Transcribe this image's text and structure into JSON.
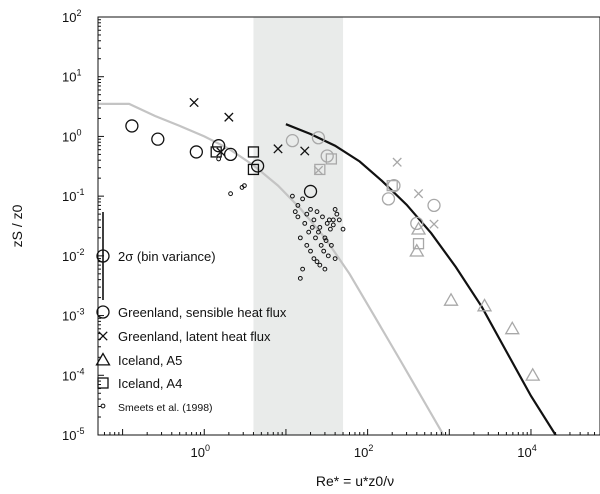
{
  "chart_data": {
    "type": "scatter",
    "title": "",
    "xlabel": "Re* = u*z0/ν",
    "ylabel": "zS / z0",
    "x_scale": "log",
    "y_scale": "log",
    "xlim": [
      0.05,
      70000
    ],
    "ylim": [
      1e-05,
      100
    ],
    "x_ticks": [
      {
        "value": 1,
        "base": "10",
        "exp": "0"
      },
      {
        "value": 100,
        "base": "10",
        "exp": "2"
      },
      {
        "value": 10000,
        "base": "10",
        "exp": "4"
      }
    ],
    "y_ticks": [
      {
        "value": 100,
        "base": "10",
        "exp": "2"
      },
      {
        "value": 10,
        "base": "10",
        "exp": "1"
      },
      {
        "value": 1,
        "base": "10",
        "exp": "0"
      },
      {
        "value": 0.1,
        "base": "10",
        "exp": "-1"
      },
      {
        "value": 0.01,
        "base": "10",
        "exp": "-2"
      },
      {
        "value": 0.001,
        "base": "10",
        "exp": "-3"
      },
      {
        "value": 0.0001,
        "base": "10",
        "exp": "-4"
      },
      {
        "value": 1e-05,
        "base": "10",
        "exp": "-5"
      }
    ],
    "grid": false,
    "shaded_band": {
      "x": [
        4,
        50
      ],
      "color": "#e9ebea"
    },
    "legend": {
      "placement": "lower-left",
      "errorbar_label": "2σ (bin variance)",
      "entries": [
        {
          "marker": "circle",
          "label": "Greenland, sensible heat flux"
        },
        {
          "marker": "cross",
          "label": "Greenland, latent heat flux"
        },
        {
          "marker": "triangle",
          "label": "Iceland, A5"
        },
        {
          "marker": "square",
          "label": "Iceland, A4"
        },
        {
          "marker": "small-circle",
          "label": "Smeets et al. (1998)"
        }
      ]
    },
    "colors": {
      "black": "#111111",
      "gray": "#a8a8a8",
      "light_curve": "#c4c4c4"
    },
    "curves": [
      {
        "name": "",
        "color": "light",
        "points": [
          [
            0.05,
            3.5
          ],
          [
            0.12,
            3.5
          ],
          [
            0.25,
            2.2
          ],
          [
            0.5,
            1.5
          ],
          [
            1,
            1.0
          ],
          [
            2,
            0.62
          ],
          [
            4,
            0.33
          ],
          [
            8,
            0.15
          ],
          [
            15,
            0.062
          ],
          [
            30,
            0.02
          ],
          [
            60,
            0.005
          ],
          [
            120,
            0.001
          ],
          [
            250,
            0.00018
          ],
          [
            500,
            3.5e-05
          ],
          [
            850,
            1e-05
          ]
        ]
      },
      {
        "name": "",
        "color": "black",
        "points": [
          [
            10,
            1.6
          ],
          [
            20,
            1.1
          ],
          [
            40,
            0.7
          ],
          [
            80,
            0.38
          ],
          [
            150,
            0.18
          ],
          [
            300,
            0.072
          ],
          [
            600,
            0.024
          ],
          [
            1200,
            0.0065
          ],
          [
            2500,
            0.0014
          ],
          [
            5000,
            0.00025
          ],
          [
            10000,
            4.5e-05
          ],
          [
            20000,
            1e-05
          ]
        ]
      }
    ],
    "series": [
      {
        "name": "Greenland, sensible heat flux",
        "marker": "circle",
        "color": "black",
        "size": "large",
        "points": [
          [
            0.13,
            1.5
          ],
          [
            0.27,
            0.9
          ],
          [
            0.8,
            0.55
          ],
          [
            1.5,
            0.7
          ],
          [
            2.1,
            0.5
          ],
          [
            4.5,
            0.32
          ],
          [
            20,
            0.12
          ]
        ]
      },
      {
        "name": "Greenland, sensible heat flux",
        "marker": "circle",
        "color": "gray",
        "size": "large",
        "points": [
          [
            12,
            0.85
          ],
          [
            25,
            0.95
          ],
          [
            32,
            0.47
          ],
          [
            180,
            0.09
          ],
          [
            210,
            0.15
          ],
          [
            400,
            0.035
          ],
          [
            650,
            0.07
          ]
        ]
      },
      {
        "name": "Greenland, latent heat flux",
        "marker": "cross",
        "color": "black",
        "points": [
          [
            0.75,
            3.7
          ],
          [
            2,
            2.1
          ],
          [
            1.6,
            0.55
          ],
          [
            8,
            0.62
          ],
          [
            17,
            0.57
          ]
        ]
      },
      {
        "name": "Greenland, latent heat flux",
        "marker": "cross",
        "color": "gray",
        "points": [
          [
            25,
            0.27
          ],
          [
            230,
            0.37
          ],
          [
            420,
            0.11
          ],
          [
            650,
            0.034
          ]
        ]
      },
      {
        "name": "Iceland, A5",
        "marker": "triangle",
        "color": "gray",
        "points": [
          [
            400,
            0.012
          ],
          [
            420,
            0.028
          ],
          [
            1050,
            0.0018
          ],
          [
            2700,
            0.00145
          ],
          [
            5900,
            0.0006
          ],
          [
            10500,
            0.0001
          ]
        ]
      },
      {
        "name": "Iceland, A4",
        "marker": "square",
        "color": "black",
        "points": [
          [
            1.4,
            0.55
          ],
          [
            4,
            0.55
          ],
          [
            4,
            0.28
          ]
        ]
      },
      {
        "name": "Iceland, A4",
        "marker": "square",
        "color": "gray",
        "points": [
          [
            26,
            0.28
          ],
          [
            36,
            0.42
          ],
          [
            200,
            0.15
          ],
          [
            420,
            0.016
          ]
        ]
      },
      {
        "name": "Smeets et al. (1998)",
        "marker": "small-circle",
        "color": "black",
        "points": [
          [
            1.5,
            0.42
          ],
          [
            2.1,
            0.11
          ],
          [
            2.9,
            0.14
          ],
          [
            3.1,
            0.15
          ],
          [
            12,
            0.1
          ],
          [
            14,
            0.07
          ],
          [
            16,
            0.09
          ],
          [
            18,
            0.05
          ],
          [
            20,
            0.06
          ],
          [
            22,
            0.04
          ],
          [
            24,
            0.055
          ],
          [
            26,
            0.03
          ],
          [
            28,
            0.045
          ],
          [
            30,
            0.02
          ],
          [
            32,
            0.035
          ],
          [
            35,
            0.028
          ],
          [
            38,
            0.04
          ],
          [
            40,
            0.06
          ],
          [
            42,
            0.05
          ],
          [
            45,
            0.04
          ],
          [
            50,
            0.028
          ],
          [
            14,
            0.045
          ],
          [
            17,
            0.035
          ],
          [
            19,
            0.025
          ],
          [
            21,
            0.03
          ],
          [
            23,
            0.02
          ],
          [
            25,
            0.025
          ],
          [
            27,
            0.015
          ],
          [
            29,
            0.012
          ],
          [
            31,
            0.018
          ],
          [
            33,
            0.01
          ],
          [
            36,
            0.015
          ],
          [
            15,
            0.02
          ],
          [
            18,
            0.015
          ],
          [
            20,
            0.012
          ],
          [
            22,
            0.009
          ],
          [
            24,
            0.008
          ],
          [
            26,
            0.007
          ],
          [
            30,
            0.006
          ],
          [
            13,
            0.055
          ],
          [
            16,
            0.006
          ],
          [
            15,
            0.0042
          ],
          [
            34,
            0.04
          ],
          [
            38,
            0.033
          ],
          [
            40,
            0.009
          ]
        ]
      }
    ]
  }
}
